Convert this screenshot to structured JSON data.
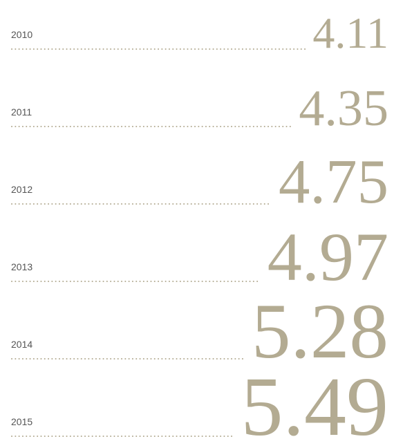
{
  "chart_data": {
    "type": "number-list",
    "categories": [
      "2010",
      "2011",
      "2012",
      "2013",
      "2014",
      "2015"
    ],
    "values": [
      4.11,
      4.35,
      4.75,
      4.97,
      5.28,
      5.49
    ],
    "color": "#b3ab92"
  }
}
